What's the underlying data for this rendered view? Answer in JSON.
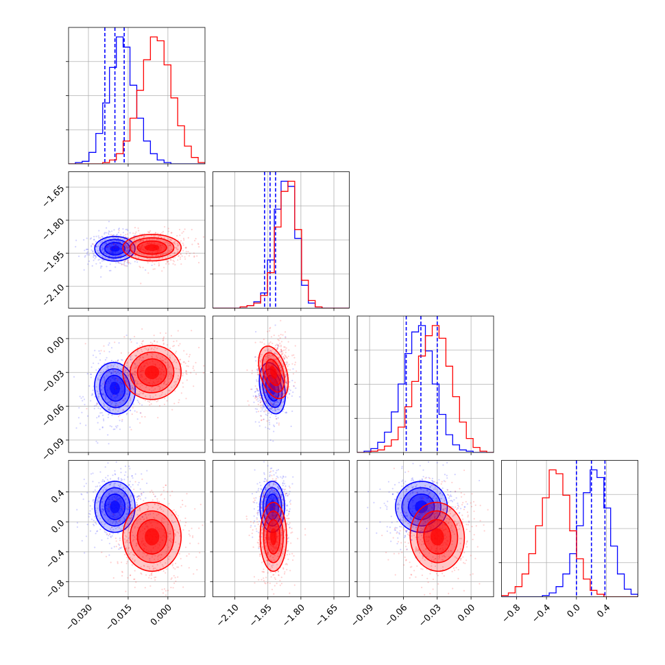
{
  "colors": {
    "set_a": "#0000ff",
    "set_b": "#ff0000",
    "grid": "#b0b0b0"
  },
  "chart_data": {
    "type": "corner",
    "legend": "none",
    "parameters": [
      {
        "ticks": [
          -0.03,
          -0.015,
          0.0
        ],
        "tick_labels": [
          "−0.030",
          "−0.015",
          "0.000"
        ],
        "range": [
          -0.0375,
          0.014
        ]
      },
      {
        "ticks": [
          -2.1,
          -1.95,
          -1.8,
          -1.65
        ],
        "tick_labels": [
          "−2.10",
          "−1.95",
          "−1.80",
          "−1.65"
        ],
        "range": [
          -2.2,
          -1.58
        ]
      },
      {
        "ticks": [
          -0.09,
          -0.06,
          -0.03,
          0.0
        ],
        "tick_labels": [
          "−0.09",
          "−0.06",
          "−0.03",
          "0.00"
        ],
        "range": [
          -0.101,
          0.02
        ]
      },
      {
        "ticks": [
          -0.8,
          -0.4,
          0.0,
          0.4
        ],
        "tick_labels": [
          "−0.8",
          "−0.4",
          "0.0",
          "0.4"
        ],
        "range": [
          -1.0,
          0.82
        ]
      }
    ],
    "series": [
      {
        "color": "#0000ff",
        "quantiles": [
          [
            -0.0238,
            -0.02,
            -0.0165
          ],
          [
            -1.965,
            -1.94,
            -1.915
          ],
          [
            -0.0575,
            -0.0445,
            -0.03
          ],
          [
            0.0,
            0.2,
            0.38
          ]
        ],
        "mean": [
          -0.02,
          -1.93,
          -0.044,
          0.2
        ],
        "sd": [
          0.0038,
          0.028,
          0.0115,
          0.17
        ],
        "corr": [
          [
            1,
            0.0,
            0.2,
            0.0
          ],
          [
            0.0,
            1,
            0.15,
            0.0
          ],
          [
            0.2,
            0.15,
            1,
            0.1
          ],
          [
            0.0,
            0.0,
            0.1,
            1
          ]
        ],
        "hist_counts": [
          [
            0,
            1,
            2,
            9,
            24,
            48,
            76,
            100,
            92,
            62,
            36,
            18,
            8,
            3,
            1,
            0,
            0,
            0,
            0,
            0
          ],
          [
            0,
            0,
            0,
            0,
            1,
            2,
            5,
            12,
            38,
            78,
            100,
            96,
            55,
            18,
            4,
            1,
            0,
            0,
            0,
            0
          ],
          [
            0,
            1,
            3,
            8,
            16,
            32,
            54,
            78,
            95,
            100,
            80,
            54,
            30,
            14,
            6,
            2,
            1,
            0,
            0,
            0
          ],
          [
            0,
            0,
            0,
            0,
            0,
            0,
            1,
            3,
            8,
            18,
            34,
            56,
            82,
            100,
            94,
            70,
            40,
            18,
            6,
            2
          ]
        ]
      },
      {
        "color": "#ff0000",
        "quantiles": null,
        "mean": [
          -0.006,
          -1.925,
          -0.03,
          -0.2
        ],
        "sd": [
          0.0055,
          0.03,
          0.012,
          0.23
        ],
        "corr": [
          [
            1,
            0.0,
            0.15,
            0.0
          ],
          [
            0.0,
            1,
            0.25,
            0.0
          ],
          [
            0.15,
            0.25,
            1,
            0.1
          ],
          [
            0.0,
            0.0,
            0.1,
            1
          ]
        ],
        "hist_counts": [
          [
            0,
            0,
            0,
            0,
            0,
            1,
            3,
            8,
            18,
            36,
            58,
            82,
            100,
            97,
            78,
            52,
            30,
            14,
            5,
            1
          ],
          [
            0,
            0,
            0,
            0,
            1,
            2,
            4,
            10,
            28,
            64,
            92,
            100,
            62,
            22,
            6,
            1,
            0,
            0,
            0,
            0
          ],
          [
            0,
            0,
            1,
            2,
            5,
            10,
            20,
            36,
            56,
            76,
            92,
            100,
            90,
            68,
            44,
            24,
            11,
            4,
            1,
            0
          ],
          [
            1,
            3,
            8,
            18,
            34,
            56,
            78,
            100,
            97,
            80,
            52,
            30,
            14,
            5,
            2,
            0,
            0,
            0,
            0,
            0
          ]
        ]
      }
    ]
  }
}
